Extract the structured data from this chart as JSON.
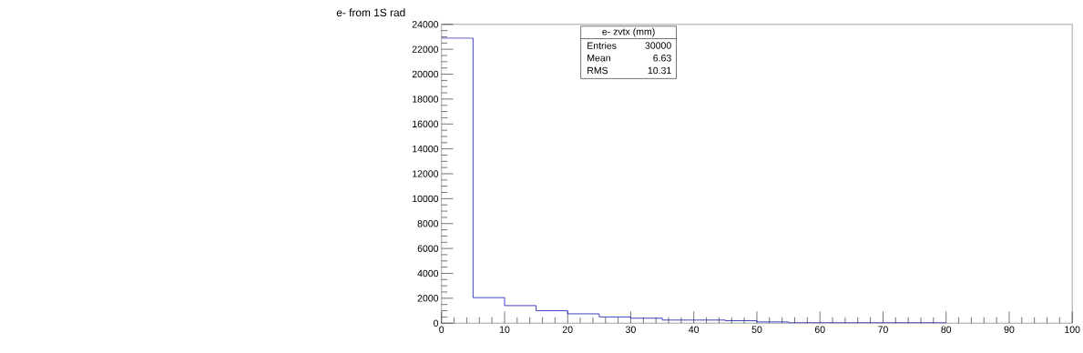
{
  "chart_data": {
    "type": "histogram",
    "title": "e- from 1S rad",
    "bins": [
      0,
      5,
      10,
      15,
      20,
      25,
      30,
      35,
      40,
      45,
      50,
      55,
      60,
      65,
      70,
      75,
      80
    ],
    "values": [
      22900,
      2050,
      1410,
      1000,
      750,
      500,
      400,
      250,
      250,
      200,
      100,
      30,
      30,
      30,
      30,
      30
    ],
    "color": "#1a1ab8",
    "xlim": [
      0,
      100
    ],
    "ylim": [
      0,
      24000
    ],
    "xticks": [
      0,
      10,
      20,
      30,
      40,
      50,
      60,
      70,
      80,
      90,
      100
    ],
    "yticks": [
      0,
      2000,
      4000,
      6000,
      8000,
      10000,
      12000,
      14000,
      16000,
      18000,
      20000,
      22000,
      24000
    ],
    "grid": false,
    "annotations": [
      "e- zvtx (mm)",
      "Entries",
      "30000",
      "Mean",
      "6.63",
      "RMS",
      "10.31"
    ]
  }
}
